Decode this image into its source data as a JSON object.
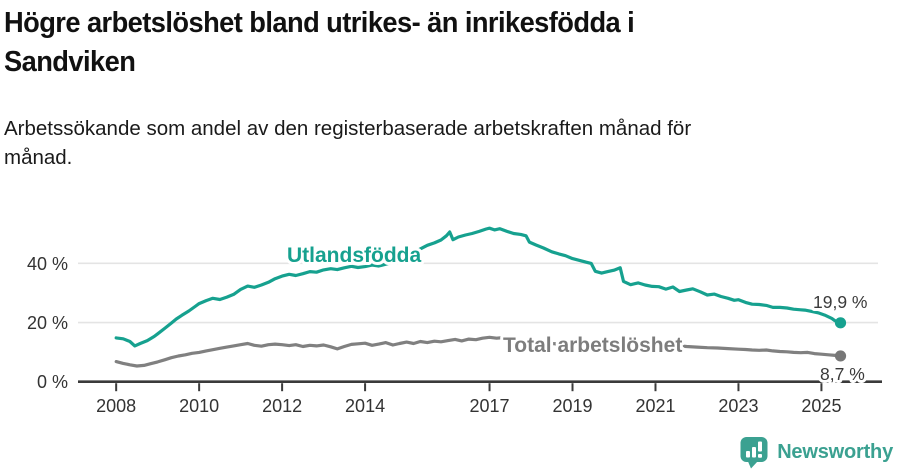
{
  "chart_data": {
    "type": "line",
    "title": "Högre arbetslöshet bland utrikes- än inrikesfödda i\nSandviken",
    "subtitle": "Arbetssökande som andel av den registerbaserade arbetskraften månad för\nmånad.",
    "xlim": [
      2007.08,
      2026.46
    ],
    "ylim": [
      0,
      55.5
    ],
    "grid": "horizontal",
    "legend_position": "inline-labels",
    "y_ticks": [
      {
        "value": 0,
        "label": "0 %"
      },
      {
        "value": 20,
        "label": "20 %"
      },
      {
        "value": 40,
        "label": "40 %"
      }
    ],
    "x_ticks": [
      {
        "year": 2008,
        "label": "2008"
      },
      {
        "year": 2010,
        "label": "2010"
      },
      {
        "year": 2012,
        "label": "2012"
      },
      {
        "year": 2014,
        "label": "2014"
      },
      {
        "year": 2017,
        "label": "2017"
      },
      {
        "year": 2019,
        "label": "2019"
      },
      {
        "year": 2021,
        "label": "2021"
      },
      {
        "year": 2023,
        "label": "2023"
      },
      {
        "year": 2025,
        "label": "2025"
      }
    ],
    "series": [
      {
        "name": "Utlandsfödda",
        "color": "#16a18f",
        "end_label": "19,9 %",
        "points": [
          [
            2008.0,
            14.8
          ],
          [
            2008.17,
            14.5
          ],
          [
            2008.33,
            13.6
          ],
          [
            2008.45,
            12.1
          ],
          [
            2008.58,
            12.9
          ],
          [
            2008.75,
            13.9
          ],
          [
            2008.92,
            15.3
          ],
          [
            2009.0,
            16.2
          ],
          [
            2009.17,
            18.0
          ],
          [
            2009.33,
            19.8
          ],
          [
            2009.45,
            21.2
          ],
          [
            2009.58,
            22.4
          ],
          [
            2009.75,
            23.9
          ],
          [
            2009.92,
            25.6
          ],
          [
            2010.0,
            26.4
          ],
          [
            2010.17,
            27.4
          ],
          [
            2010.33,
            28.2
          ],
          [
            2010.5,
            27.8
          ],
          [
            2010.67,
            28.6
          ],
          [
            2010.83,
            29.5
          ],
          [
            2011.0,
            31.2
          ],
          [
            2011.17,
            32.3
          ],
          [
            2011.33,
            31.9
          ],
          [
            2011.5,
            32.7
          ],
          [
            2011.67,
            33.6
          ],
          [
            2011.83,
            34.8
          ],
          [
            2012.0,
            35.7
          ],
          [
            2012.17,
            36.3
          ],
          [
            2012.33,
            35.9
          ],
          [
            2012.5,
            36.5
          ],
          [
            2012.67,
            37.2
          ],
          [
            2012.83,
            37.0
          ],
          [
            2013.0,
            37.8
          ],
          [
            2013.17,
            38.2
          ],
          [
            2013.33,
            37.9
          ],
          [
            2013.5,
            38.5
          ],
          [
            2013.67,
            39.0
          ],
          [
            2013.83,
            38.6
          ],
          [
            2014.0,
            38.9
          ],
          [
            2014.17,
            39.4
          ],
          [
            2014.33,
            39.1
          ],
          [
            2014.5,
            39.7
          ],
          [
            2014.67,
            40.4
          ],
          [
            2014.83,
            41.3
          ],
          [
            2015.0,
            42.4
          ],
          [
            2015.17,
            43.6
          ],
          [
            2015.33,
            44.9
          ],
          [
            2015.5,
            46.1
          ],
          [
            2015.67,
            46.9
          ],
          [
            2015.83,
            47.9
          ],
          [
            2015.96,
            49.3
          ],
          [
            2016.04,
            50.6
          ],
          [
            2016.12,
            48.0
          ],
          [
            2016.25,
            48.9
          ],
          [
            2016.42,
            49.6
          ],
          [
            2016.58,
            50.1
          ],
          [
            2016.75,
            50.8
          ],
          [
            2016.92,
            51.6
          ],
          [
            2017.0,
            51.9
          ],
          [
            2017.12,
            51.3
          ],
          [
            2017.25,
            51.7
          ],
          [
            2017.42,
            50.8
          ],
          [
            2017.58,
            50.1
          ],
          [
            2017.75,
            49.8
          ],
          [
            2017.88,
            49.3
          ],
          [
            2017.96,
            47.2
          ],
          [
            2018.12,
            46.2
          ],
          [
            2018.3,
            45.2
          ],
          [
            2018.5,
            43.9
          ],
          [
            2018.67,
            43.2
          ],
          [
            2018.83,
            42.6
          ],
          [
            2019.0,
            41.6
          ],
          [
            2019.17,
            41.0
          ],
          [
            2019.33,
            40.4
          ],
          [
            2019.45,
            40.0
          ],
          [
            2019.55,
            37.3
          ],
          [
            2019.7,
            36.7
          ],
          [
            2019.85,
            37.2
          ],
          [
            2020.0,
            37.7
          ],
          [
            2020.15,
            38.5
          ],
          [
            2020.23,
            33.9
          ],
          [
            2020.4,
            32.8
          ],
          [
            2020.58,
            33.4
          ],
          [
            2020.75,
            32.7
          ],
          [
            2020.92,
            32.2
          ],
          [
            2021.08,
            32.1
          ],
          [
            2021.25,
            31.3
          ],
          [
            2021.42,
            32.0
          ],
          [
            2021.58,
            30.5
          ],
          [
            2021.75,
            31.0
          ],
          [
            2021.9,
            31.4
          ],
          [
            2022.08,
            30.4
          ],
          [
            2022.25,
            29.3
          ],
          [
            2022.42,
            29.6
          ],
          [
            2022.58,
            28.8
          ],
          [
            2022.75,
            28.2
          ],
          [
            2022.9,
            27.5
          ],
          [
            2023.0,
            27.7
          ],
          [
            2023.17,
            26.8
          ],
          [
            2023.33,
            26.2
          ],
          [
            2023.5,
            26.1
          ],
          [
            2023.67,
            25.8
          ],
          [
            2023.83,
            25.1
          ],
          [
            2024.0,
            25.1
          ],
          [
            2024.17,
            24.9
          ],
          [
            2024.33,
            24.5
          ],
          [
            2024.5,
            24.3
          ],
          [
            2024.6,
            24.2
          ],
          [
            2024.75,
            23.8
          ],
          [
            2024.92,
            23.3
          ],
          [
            2025.08,
            22.5
          ],
          [
            2025.25,
            21.4
          ],
          [
            2025.33,
            20.6
          ],
          [
            2025.46,
            19.9
          ]
        ]
      },
      {
        "name": "Total arbetslöshet",
        "color": "#808080",
        "end_label": "8,7 %",
        "points": [
          [
            2008.0,
            6.8
          ],
          [
            2008.17,
            6.2
          ],
          [
            2008.33,
            5.7
          ],
          [
            2008.5,
            5.3
          ],
          [
            2008.67,
            5.5
          ],
          [
            2008.83,
            6.1
          ],
          [
            2009.0,
            6.7
          ],
          [
            2009.17,
            7.4
          ],
          [
            2009.33,
            8.1
          ],
          [
            2009.5,
            8.7
          ],
          [
            2009.67,
            9.1
          ],
          [
            2009.83,
            9.6
          ],
          [
            2010.0,
            9.9
          ],
          [
            2010.17,
            10.4
          ],
          [
            2010.33,
            10.8
          ],
          [
            2010.5,
            11.3
          ],
          [
            2010.67,
            11.7
          ],
          [
            2010.83,
            12.1
          ],
          [
            2011.0,
            12.5
          ],
          [
            2011.17,
            12.9
          ],
          [
            2011.33,
            12.3
          ],
          [
            2011.5,
            12.0
          ],
          [
            2011.67,
            12.5
          ],
          [
            2011.83,
            12.7
          ],
          [
            2012.0,
            12.5
          ],
          [
            2012.17,
            12.2
          ],
          [
            2012.33,
            12.5
          ],
          [
            2012.5,
            11.9
          ],
          [
            2012.67,
            12.3
          ],
          [
            2012.83,
            12.1
          ],
          [
            2013.0,
            12.4
          ],
          [
            2013.17,
            11.8
          ],
          [
            2013.33,
            11.1
          ],
          [
            2013.5,
            11.9
          ],
          [
            2013.67,
            12.6
          ],
          [
            2013.83,
            12.8
          ],
          [
            2014.0,
            13.0
          ],
          [
            2014.17,
            12.3
          ],
          [
            2014.33,
            12.7
          ],
          [
            2014.5,
            13.2
          ],
          [
            2014.67,
            12.4
          ],
          [
            2014.83,
            12.9
          ],
          [
            2015.0,
            13.4
          ],
          [
            2015.17,
            12.9
          ],
          [
            2015.33,
            13.6
          ],
          [
            2015.5,
            13.2
          ],
          [
            2015.67,
            13.7
          ],
          [
            2015.83,
            13.5
          ],
          [
            2016.0,
            13.9
          ],
          [
            2016.17,
            14.3
          ],
          [
            2016.33,
            13.8
          ],
          [
            2016.5,
            14.4
          ],
          [
            2016.67,
            14.2
          ],
          [
            2016.83,
            14.7
          ],
          [
            2017.0,
            15.0
          ],
          [
            2017.17,
            14.7
          ],
          [
            2017.33,
            14.9
          ],
          [
            2017.5,
            14.5
          ],
          [
            2017.67,
            14.2
          ],
          [
            2017.83,
            13.9
          ],
          [
            2018.0,
            13.6
          ],
          [
            2018.25,
            13.2
          ],
          [
            2018.5,
            12.9
          ],
          [
            2018.75,
            12.6
          ],
          [
            2019.0,
            12.4
          ],
          [
            2019.25,
            12.1
          ],
          [
            2019.5,
            11.9
          ],
          [
            2019.75,
            12.0
          ],
          [
            2020.0,
            12.2
          ],
          [
            2020.25,
            13.4
          ],
          [
            2020.5,
            13.6
          ],
          [
            2020.75,
            13.3
          ],
          [
            2021.0,
            12.9
          ],
          [
            2021.25,
            12.5
          ],
          [
            2021.5,
            12.2
          ],
          [
            2021.75,
            11.9
          ],
          [
            2022.0,
            11.7
          ],
          [
            2022.25,
            11.5
          ],
          [
            2022.5,
            11.4
          ],
          [
            2022.75,
            11.2
          ],
          [
            2023.0,
            11.0
          ],
          [
            2023.17,
            10.9
          ],
          [
            2023.33,
            10.7
          ],
          [
            2023.5,
            10.6
          ],
          [
            2023.67,
            10.7
          ],
          [
            2023.83,
            10.4
          ],
          [
            2024.0,
            10.2
          ],
          [
            2024.17,
            10.1
          ],
          [
            2024.33,
            9.9
          ],
          [
            2024.5,
            9.8
          ],
          [
            2024.67,
            9.9
          ],
          [
            2024.83,
            9.5
          ],
          [
            2025.0,
            9.3
          ],
          [
            2025.17,
            9.1
          ],
          [
            2025.33,
            8.9
          ],
          [
            2025.46,
            8.7
          ]
        ]
      }
    ],
    "colors": {
      "accent_teal": "#16a18f",
      "line_gray": "#808080",
      "gridline": "#e4e4e4",
      "axis": "#3a3a3a",
      "tick_label": "#333333",
      "brand_teal": "#3ba191"
    }
  },
  "footer": {
    "brand": "Newsworthy"
  }
}
